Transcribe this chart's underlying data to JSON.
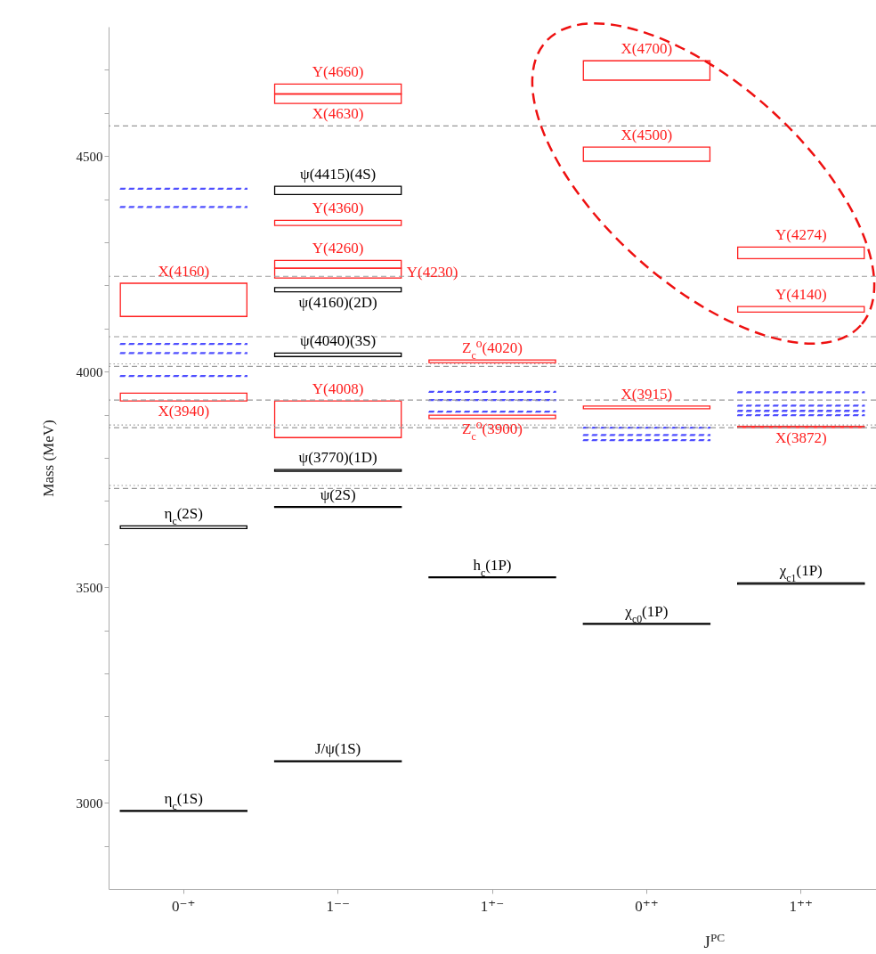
{
  "chart_data": {
    "type": "bar",
    "categories": [
      "0⁻⁺",
      "1⁻⁻",
      "1⁺⁻",
      "0⁺⁺",
      "1⁺⁺"
    ],
    "xlabel": "J$^{PC}$",
    "ylabel": "Mass (MeV)",
    "ylim": [
      2800,
      4800
    ],
    "yticks": [
      {
        "value": 2900,
        "label": null
      },
      3000,
      {
        "value": 3100,
        "label": null
      },
      {
        "value": 3200,
        "label": null
      },
      {
        "value": 3300,
        "label": null
      },
      {
        "value": 3400,
        "label": null
      },
      3500,
      {
        "value": 3600,
        "label": null
      },
      {
        "value": 3700,
        "label": null
      },
      {
        "value": 3800,
        "label": null
      },
      {
        "value": 3900,
        "label": null
      },
      4000,
      {
        "value": 4100,
        "label": null
      },
      {
        "value": 4200,
        "label": null
      },
      {
        "value": 4300,
        "label": null
      },
      {
        "value": 4400,
        "label": null
      },
      4500,
      {
        "value": 4600,
        "label": null
      },
      {
        "value": 4700,
        "label": null
      }
    ],
    "series": [
      {
        "color": "#000000",
        "x": [
          "0⁻⁺",
          "0⁻⁺",
          "1⁻⁻",
          "1⁻⁻",
          "1⁻⁻",
          "1⁻⁻",
          "1⁻⁻",
          "1⁻⁻",
          "1⁺⁻",
          "0⁺⁺",
          "1⁺⁺"
        ],
        "base": [
          2980,
          3636,
          3095,
          3685,
          3769,
          4035,
          4185,
          4411,
          3522,
          3414,
          3507
        ],
        "values": [
          2,
          6,
          2,
          2,
          4,
          8,
          10,
          19,
          2,
          2,
          3
        ]
      },
      {
        "color": "#ff2020",
        "x": [
          "0⁻⁺",
          "0⁻⁺",
          "1⁻⁻",
          "1⁻⁻",
          "1⁻⁻",
          "1⁻⁻",
          "1⁻⁻",
          "1⁻⁻",
          "1⁺⁻",
          "1⁺⁻",
          "0⁺⁺",
          "0⁺⁺",
          "0⁺⁺",
          "1⁺⁺",
          "1⁺⁺",
          "1⁺⁺"
        ],
        "base": [
          3932,
          4128,
          3847,
          4217,
          4240,
          4339,
          4622,
          4644,
          3891,
          4021,
          3914,
          4488,
          4676,
          3870,
          4138,
          4262
        ],
        "values": [
          18,
          77,
          85,
          23,
          18,
          12,
          22,
          23,
          8,
          6,
          6,
          33,
          45,
          3,
          13,
          27
        ]
      },
      {
        "color": "#4f4fff",
        "line_style": "dashed",
        "x": [
          "0⁻⁺",
          "0⁻⁺",
          "0⁻⁺",
          "0⁻⁺",
          "0⁻⁺",
          "1⁺⁻",
          "1⁺⁻",
          "1⁺⁻",
          "0⁺⁺",
          "0⁺⁺",
          "0⁺⁺",
          "1⁺⁺",
          "1⁺⁺",
          "1⁺⁺",
          "1⁺⁺"
        ],
        "base": [
          4423,
          4381,
          4063,
          4042,
          3989,
          3952,
          3933,
          3906,
          3869,
          3852,
          3840,
          3951,
          3920,
          3908,
          3898
        ],
        "values": [
          2,
          2,
          2,
          2,
          2,
          2,
          2,
          2,
          2,
          2,
          2,
          2,
          2,
          2,
          2
        ]
      }
    ],
    "ref_lines": [
      {
        "axis": "y",
        "value": 4570,
        "color": "#999999",
        "line_style": "dashed"
      },
      {
        "axis": "y",
        "value": 4221,
        "color": "#999999",
        "line_style": "dashed"
      },
      {
        "axis": "y",
        "value": 4081,
        "color": "#999999",
        "line_style": "dashed"
      },
      {
        "axis": "y",
        "value": 4018,
        "color": "#999999",
        "line_style": "dotted"
      },
      {
        "axis": "y",
        "value": 4012,
        "color": "#999999",
        "line_style": "dashed"
      },
      {
        "axis": "y",
        "value": 3934,
        "color": "#999999",
        "line_style": "dashed"
      },
      {
        "axis": "y",
        "value": 3876,
        "color": "#999999",
        "line_style": "dotted"
      },
      {
        "axis": "y",
        "value": 3870,
        "color": "#999999",
        "line_style": "dashed"
      },
      {
        "axis": "y",
        "value": 3736,
        "color": "#999999",
        "line_style": "dotted"
      },
      {
        "axis": "y",
        "value": 3729,
        "color": "#999999",
        "line_style": "dashed"
      }
    ],
    "annotations": [
      {
        "text": "η$_{c}$(1S)",
        "x": "0⁻⁺",
        "y": 2982
      },
      {
        "text": "η$_{c}$(2S)",
        "x": "0⁻⁺",
        "y": 3642
      },
      {
        "text": "X(3940)",
        "x": "0⁻⁺",
        "y": 3932
      },
      {
        "text": "X(4160)",
        "x": "0⁻⁺",
        "y": 4205
      },
      {
        "text": "J/ψ(1S)",
        "x": "1⁻⁻",
        "y": 3097
      },
      {
        "text": "ψ(2S)",
        "x": "1⁻⁻",
        "y": 3687
      },
      {
        "text": "ψ(3770)(1D)",
        "x": "1⁻⁻",
        "y": 3773
      },
      {
        "text": "Y(4008)",
        "x": "1⁻⁻",
        "y": 3932
      },
      {
        "text": "ψ(4040)(3S)",
        "x": "1⁻⁻",
        "y": 4043
      },
      {
        "text": "ψ(4160)(2D)",
        "x": "1⁻⁻",
        "y": 4185
      },
      {
        "text": "Y(4260)",
        "x": "1⁻⁻",
        "y": 4258
      },
      "Y(4230)",
      {
        "text": "Y(4360)",
        "x": "1⁻⁻",
        "y": 4351
      },
      {
        "text": "ψ(4415)(4S)",
        "x": "1⁻⁻",
        "y": 4430
      },
      {
        "text": "Y(4660)",
        "x": "1⁻⁻",
        "y": 4667
      },
      {
        "text": "X(4630)",
        "x": "1⁻⁻",
        "y": 4622
      },
      {
        "text": "h$_{c}$(1P)",
        "x": "1⁺⁻",
        "y": 3524
      },
      {
        "text": "Z$_{c}$⁰(3900)",
        "x": "1⁺⁻",
        "y": 3891
      },
      {
        "text": "Z$_{c}$⁰(4020)",
        "x": "1⁺⁻",
        "y": 4027
      },
      {
        "text": "χ$_{c0}$(1P)",
        "x": "0⁺⁺",
        "y": 3416
      },
      {
        "text": "X(3915)",
        "x": "0⁺⁺",
        "y": 3920
      },
      {
        "text": "X(4500)",
        "x": "0⁺⁺",
        "y": 4521
      },
      {
        "text": "X(4700)",
        "x": "0⁺⁺",
        "y": 4721
      },
      {
        "text": "χ$_{c1}$(1P)",
        "x": "1⁺⁺",
        "y": 3510
      },
      {
        "text": "X(3872)",
        "x": "1⁺⁺",
        "y": 3870
      },
      {
        "text": "Y(4140)",
        "x": "1⁺⁺",
        "y": 4151
      },
      {
        "text": "Y(4274)",
        "x": "1⁺⁺",
        "y": 4289
      }
    ]
  }
}
